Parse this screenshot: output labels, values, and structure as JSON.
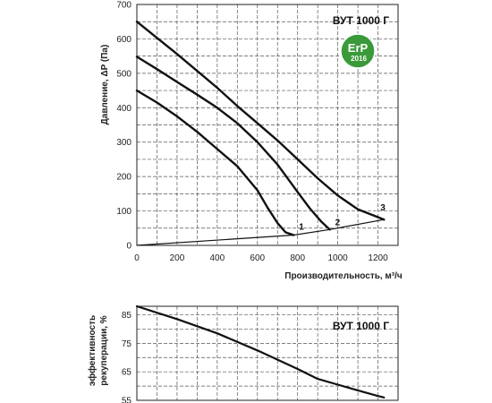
{
  "chart_data": [
    {
      "type": "line",
      "model_label": "ВУТ 1000 Г",
      "badge": {
        "text": "ErP",
        "year": "2016",
        "color": "#3a9a3a"
      },
      "xlabel": "Производительность,  м³/ч",
      "ylabel": "Давление, ΔP (Па)",
      "xlim": [
        0,
        1300
      ],
      "ylim": [
        0,
        700
      ],
      "x_ticks": [
        0,
        200,
        400,
        600,
        800,
        1000,
        1200
      ],
      "y_ticks": [
        0,
        100,
        200,
        300,
        400,
        500,
        600,
        700
      ],
      "grid": true,
      "series": [
        {
          "name": "1",
          "x": [
            0,
            100,
            200,
            300,
            400,
            500,
            600,
            650,
            700,
            740,
            780
          ],
          "y": [
            450,
            415,
            375,
            330,
            280,
            230,
            160,
            110,
            65,
            38,
            30
          ]
        },
        {
          "name": "2",
          "x": [
            0,
            100,
            200,
            300,
            400,
            500,
            600,
            700,
            800,
            860,
            920,
            960
          ],
          "y": [
            548,
            512,
            475,
            438,
            400,
            355,
            300,
            235,
            155,
            108,
            68,
            46
          ]
        },
        {
          "name": "3",
          "x": [
            0,
            100,
            200,
            300,
            400,
            500,
            600,
            700,
            800,
            900,
            1000,
            1100,
            1200,
            1230
          ],
          "y": [
            650,
            603,
            556,
            507,
            458,
            405,
            355,
            305,
            250,
            195,
            145,
            105,
            82,
            75
          ]
        },
        {
          "name": "system",
          "x": [
            0,
            780,
            960,
            1230
          ],
          "y": [
            0,
            30,
            46,
            75
          ]
        }
      ]
    },
    {
      "type": "line",
      "model_label": "ВУТ 1000 Г",
      "ylabel_line1": "эффективность",
      "ylabel_line2": "рекуперации, %",
      "xlim": [
        0,
        1300
      ],
      "ylim": [
        55,
        88
      ],
      "y_ticks": [
        55,
        65,
        75,
        85
      ],
      "grid": true,
      "series": [
        {
          "name": "efficiency",
          "x": [
            0,
            200,
            400,
            600,
            800,
            900,
            1000,
            1100,
            1200,
            1230
          ],
          "y": [
            88,
            83.5,
            78.5,
            72.5,
            66,
            62.5,
            60.5,
            58.5,
            56.5,
            56
          ]
        }
      ]
    }
  ]
}
